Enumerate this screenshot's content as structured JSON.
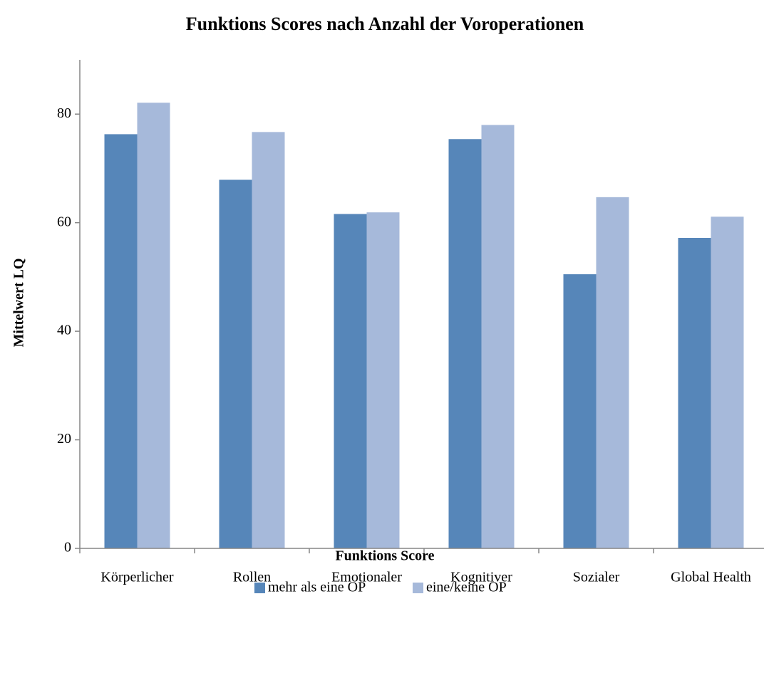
{
  "chart_data": {
    "type": "bar",
    "title": "Funktions Scores nach Anzahl der Voroperationen",
    "x_label": "Funktions Score",
    "y_label": "Mittelwert LQ",
    "categories": [
      "Körperlicher",
      "Rollen",
      "Emotionaler",
      "Kognitiver",
      "Sozialer",
      "Global Health"
    ],
    "series": [
      {
        "name": "mehr als eine OP",
        "color": "#5686b9",
        "values": [
          76.3,
          67.9,
          61.6,
          75.4,
          50.5,
          57.2
        ]
      },
      {
        "name": "eine/keine OP",
        "color": "#a6b9da",
        "values": [
          82.1,
          76.7,
          61.9,
          78.0,
          64.7,
          61.1
        ]
      }
    ],
    "ylim": [
      0,
      90
    ],
    "yticks": [
      0,
      20,
      40,
      60,
      80
    ],
    "grid": false,
    "legend": "bottom"
  }
}
